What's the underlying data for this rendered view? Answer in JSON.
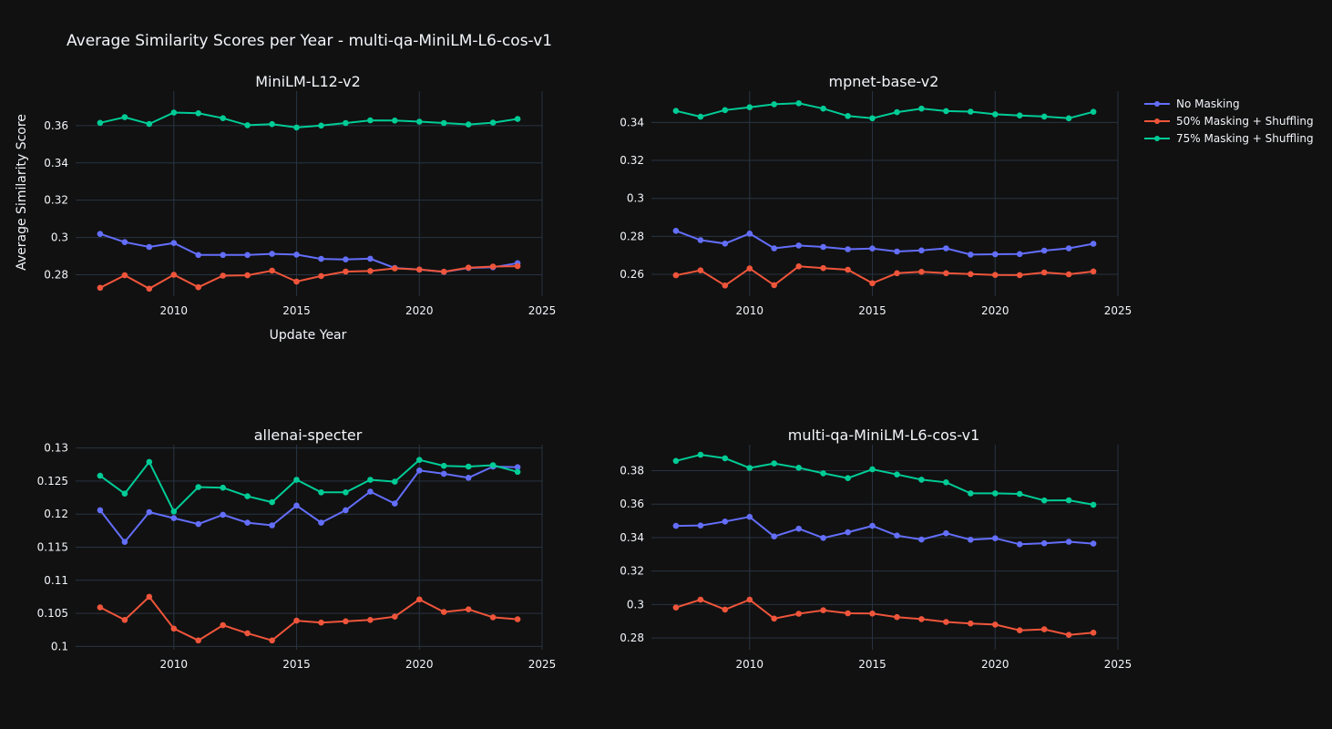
{
  "title": "Average Similarity Scores per Year - multi-qa-MiniLM-L6-cos-v1",
  "colors": {
    "background": "#111111",
    "grid": "#283442",
    "text": "#f2f5fa",
    "no_masking": "#636efa",
    "masking_50": "#ef553b",
    "masking_75": "#00cc96"
  },
  "legend": [
    {
      "name": "No Masking",
      "color": "#636efa"
    },
    {
      "name": "50% Masking + Shuffling",
      "color": "#ef553b"
    },
    {
      "name": "75% Masking + Shuffling",
      "color": "#00cc96"
    }
  ],
  "chart_data": [
    {
      "type": "line",
      "title": "MiniLM-L12-v2",
      "xlabel": "Update Year",
      "ylabel": "Average Similarity Score",
      "xlim": [
        2006,
        2025
      ],
      "ylim": [
        0.2685,
        0.3785
      ],
      "xticks": [
        2010,
        2015,
        2020,
        2025
      ],
      "yticks": [
        0.28,
        0.3,
        0.32,
        0.34,
        0.36
      ],
      "ytick_labels": [
        "0.28",
        "0.3",
        "0.32",
        "0.34",
        "0.36"
      ],
      "x": [
        2007,
        2008,
        2009,
        2010,
        2011,
        2012,
        2013,
        2014,
        2015,
        2016,
        2017,
        2018,
        2019,
        2020,
        2021,
        2022,
        2023,
        2024
      ],
      "series": [
        {
          "name": "No Masking",
          "values": [
            0.3019,
            0.2975,
            0.2949,
            0.297,
            0.2906,
            0.2906,
            0.2906,
            0.2912,
            0.2908,
            0.2885,
            0.2882,
            0.2886,
            0.2836,
            0.2828,
            0.2815,
            0.2836,
            0.284,
            0.2862
          ]
        },
        {
          "name": "50% Masking + Shuffling",
          "values": [
            0.273,
            0.2797,
            0.2725,
            0.28,
            0.2733,
            0.2795,
            0.2797,
            0.2822,
            0.2763,
            0.2793,
            0.2817,
            0.282,
            0.2834,
            0.2828,
            0.2816,
            0.2838,
            0.2844,
            0.2846
          ]
        },
        {
          "name": "75% Masking + Shuffling",
          "values": [
            0.3615,
            0.3645,
            0.3609,
            0.367,
            0.3666,
            0.364,
            0.3602,
            0.3608,
            0.359,
            0.36,
            0.3614,
            0.3628,
            0.3627,
            0.3621,
            0.3614,
            0.3606,
            0.3616,
            0.3636
          ]
        }
      ]
    },
    {
      "type": "line",
      "title": "mpnet-base-v2",
      "xlabel": "",
      "ylabel": "",
      "xlim": [
        2006,
        2025
      ],
      "ylim": [
        0.2485,
        0.3565
      ],
      "xticks": [
        2010,
        2015,
        2020,
        2025
      ],
      "yticks": [
        0.26,
        0.28,
        0.3,
        0.32,
        0.34
      ],
      "ytick_labels": [
        "0.26",
        "0.28",
        "0.3",
        "0.32",
        "0.34"
      ],
      "x": [
        2007,
        2008,
        2009,
        2010,
        2011,
        2012,
        2013,
        2014,
        2015,
        2016,
        2017,
        2018,
        2019,
        2020,
        2021,
        2022,
        2023,
        2024
      ],
      "series": [
        {
          "name": "No Masking",
          "values": [
            0.2829,
            0.278,
            0.2762,
            0.2815,
            0.2737,
            0.2752,
            0.2744,
            0.2732,
            0.2736,
            0.272,
            0.2726,
            0.2737,
            0.2704,
            0.2706,
            0.2707,
            0.2725,
            0.2737,
            0.2761
          ]
        },
        {
          "name": "50% Masking + Shuffling",
          "values": [
            0.2595,
            0.2621,
            0.2541,
            0.2631,
            0.2543,
            0.2642,
            0.2633,
            0.2624,
            0.2553,
            0.2606,
            0.2613,
            0.2606,
            0.2601,
            0.2597,
            0.2596,
            0.261,
            0.26,
            0.2615
          ]
        },
        {
          "name": "75% Masking + Shuffling",
          "values": [
            0.3461,
            0.343,
            0.3465,
            0.348,
            0.3496,
            0.3501,
            0.3473,
            0.3434,
            0.3422,
            0.3454,
            0.3473,
            0.346,
            0.3457,
            0.3443,
            0.3437,
            0.3431,
            0.3422,
            0.3456
          ]
        }
      ]
    },
    {
      "type": "line",
      "title": "allenai-specter",
      "xlabel": "",
      "ylabel": "",
      "xlim": [
        2006,
        2025
      ],
      "ylim": [
        0.0995,
        0.1305
      ],
      "xticks": [
        2010,
        2015,
        2020,
        2025
      ],
      "yticks": [
        0.1,
        0.105,
        0.11,
        0.115,
        0.12,
        0.125,
        0.13
      ],
      "ytick_labels": [
        "0.1",
        "0.105",
        "0.11",
        "0.115",
        "0.12",
        "0.125",
        "0.13"
      ],
      "x": [
        2007,
        2008,
        2009,
        2010,
        2011,
        2012,
        2013,
        2014,
        2015,
        2016,
        2017,
        2018,
        2019,
        2020,
        2021,
        2022,
        2023,
        2024
      ],
      "series": [
        {
          "name": "No Masking",
          "values": [
            0.1206,
            0.1158,
            0.1203,
            0.1194,
            0.1185,
            0.1199,
            0.1187,
            0.1183,
            0.1213,
            0.1187,
            0.1206,
            0.1234,
            0.1216,
            0.1266,
            0.1261,
            0.1255,
            0.1272,
            0.1271
          ]
        },
        {
          "name": "50% Masking + Shuffling",
          "values": [
            0.1059,
            0.104,
            0.1075,
            0.1027,
            0.1009,
            0.1032,
            0.102,
            0.1009,
            0.1039,
            0.1036,
            0.1038,
            0.104,
            0.1045,
            0.1071,
            0.1052,
            0.1056,
            0.1044,
            0.1041
          ]
        },
        {
          "name": "75% Masking + Shuffling",
          "values": [
            0.1258,
            0.1231,
            0.1279,
            0.1204,
            0.1241,
            0.124,
            0.1227,
            0.1218,
            0.1252,
            0.1233,
            0.1233,
            0.1252,
            0.1249,
            0.1282,
            0.1273,
            0.1272,
            0.1274,
            0.1264
          ]
        }
      ]
    },
    {
      "type": "line",
      "title": "multi-qa-MiniLM-L6-cos-v1",
      "xlabel": "",
      "ylabel": "",
      "xlim": [
        2006,
        2025
      ],
      "ylim": [
        0.273,
        0.3955
      ],
      "xticks": [
        2010,
        2015,
        2020,
        2025
      ],
      "yticks": [
        0.28,
        0.3,
        0.32,
        0.34,
        0.36,
        0.38
      ],
      "ytick_labels": [
        "0.28",
        "0.3",
        "0.32",
        "0.34",
        "0.36",
        "0.38"
      ],
      "x": [
        2007,
        2008,
        2009,
        2010,
        2011,
        2012,
        2013,
        2014,
        2015,
        2016,
        2017,
        2018,
        2019,
        2020,
        2021,
        2022,
        2023,
        2024
      ],
      "series": [
        {
          "name": "No Masking",
          "values": [
            0.347,
            0.3472,
            0.3496,
            0.3524,
            0.3407,
            0.3453,
            0.3398,
            0.3432,
            0.347,
            0.3412,
            0.3388,
            0.3426,
            0.3387,
            0.3396,
            0.336,
            0.3366,
            0.3375,
            0.3364
          ]
        },
        {
          "name": "50% Masking + Shuffling",
          "values": [
            0.2982,
            0.3029,
            0.297,
            0.3029,
            0.2916,
            0.2945,
            0.2966,
            0.2948,
            0.2946,
            0.2925,
            0.2913,
            0.2896,
            0.2887,
            0.288,
            0.2846,
            0.2852,
            0.2819,
            0.2832
          ]
        },
        {
          "name": "75% Masking + Shuffling",
          "values": [
            0.3858,
            0.3895,
            0.3874,
            0.3816,
            0.3843,
            0.3817,
            0.3784,
            0.3755,
            0.3808,
            0.3777,
            0.3746,
            0.373,
            0.3664,
            0.3664,
            0.3661,
            0.3622,
            0.3623,
            0.3596
          ]
        }
      ]
    }
  ]
}
